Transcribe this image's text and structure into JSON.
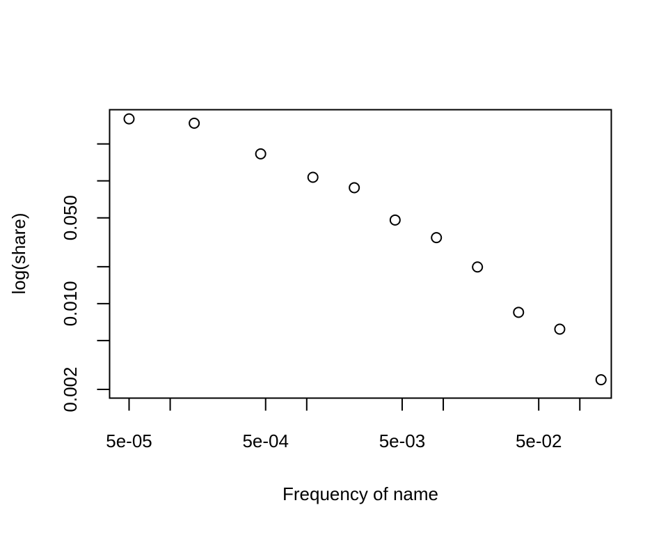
{
  "chart_data": {
    "type": "scatter",
    "title": "",
    "xlabel": "Frequency of name",
    "ylabel": "log(share)",
    "x_scale": "log",
    "y_scale": "log",
    "xlim": [
      3.6e-05,
      0.17
    ],
    "ylim": [
      0.0017,
      0.38
    ],
    "x_ticks": [
      5e-05,
      0.0001,
      0.0005,
      0.001,
      0.005,
      0.01,
      0.05,
      0.1
    ],
    "x_tick_labels": [
      "5e-05",
      "",
      "5e-04",
      "",
      "5e-03",
      "",
      "5e-02",
      ""
    ],
    "y_ticks": [
      0.002,
      0.005,
      0.01,
      0.02,
      0.05,
      0.1,
      0.2
    ],
    "y_tick_labels": [
      "0.002",
      "",
      "0.010",
      "",
      "0.050",
      "",
      ""
    ],
    "points": [
      {
        "x": 5e-05,
        "y": 0.32
      },
      {
        "x": 0.00015,
        "y": 0.295
      },
      {
        "x": 0.00046,
        "y": 0.166
      },
      {
        "x": 0.00111,
        "y": 0.107
      },
      {
        "x": 0.00223,
        "y": 0.088
      },
      {
        "x": 0.00444,
        "y": 0.048
      },
      {
        "x": 0.00891,
        "y": 0.0345
      },
      {
        "x": 0.0178,
        "y": 0.0199
      },
      {
        "x": 0.0356,
        "y": 0.0085
      },
      {
        "x": 0.0713,
        "y": 0.0062
      },
      {
        "x": 0.143,
        "y": 0.0024
      }
    ],
    "marker": "open-circle",
    "colors": {
      "foreground": "#000000",
      "background": "#ffffff"
    },
    "grid": false,
    "legend": "none"
  }
}
